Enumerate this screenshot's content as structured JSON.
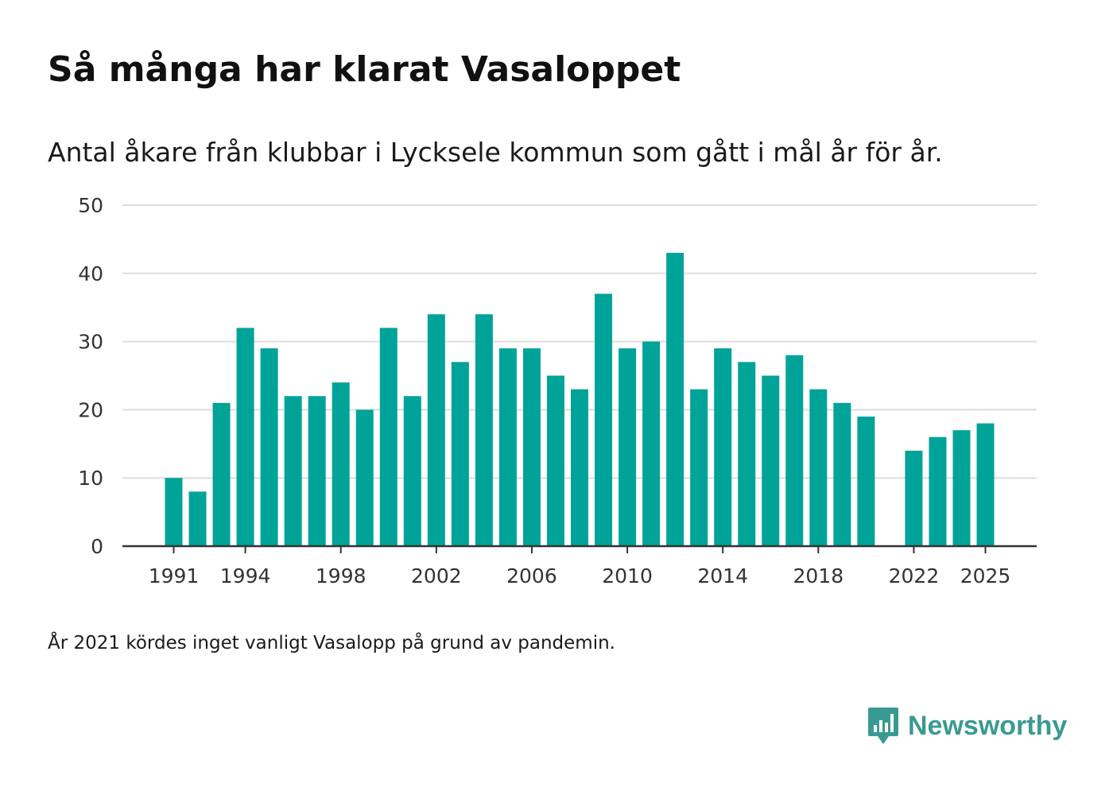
{
  "title": "Så många har klarat Vasaloppet",
  "subtitle": "Antal åkare från klubbar i Lycksele kommun som gått i mål år för år.",
  "note": "År 2021 kördes inget vanligt Vasalopp på grund av pandemin.",
  "brand": {
    "name": "Newsworthy",
    "logo_icon": "bar-chart-speech-bubble-icon",
    "color": "#3a9a92"
  },
  "colors": {
    "bar": "#00a398",
    "grid": "#dddddd",
    "axis": "#333333",
    "tick_text": "#333333"
  },
  "chart_data": {
    "type": "bar",
    "title": "Så många har klarat Vasaloppet",
    "xlabel": "",
    "ylabel": "",
    "ylim": [
      0,
      50
    ],
    "yticks": [
      0,
      10,
      20,
      30,
      40,
      50
    ],
    "xticks": [
      1991,
      1994,
      1998,
      2002,
      2006,
      2010,
      2014,
      2018,
      2022,
      2025
    ],
    "grid": true,
    "legend": "none",
    "categories": [
      1991,
      1992,
      1993,
      1994,
      1995,
      1996,
      1997,
      1998,
      1999,
      2000,
      2001,
      2002,
      2003,
      2004,
      2005,
      2006,
      2007,
      2008,
      2009,
      2010,
      2011,
      2012,
      2013,
      2014,
      2015,
      2016,
      2017,
      2018,
      2019,
      2020,
      2021,
      2022,
      2023,
      2024,
      2025
    ],
    "values": [
      10,
      8,
      21,
      32,
      29,
      22,
      22,
      24,
      20,
      32,
      22,
      34,
      27,
      34,
      29,
      29,
      25,
      23,
      37,
      29,
      30,
      43,
      23,
      29,
      27,
      25,
      28,
      23,
      21,
      19,
      null,
      14,
      16,
      17,
      18
    ]
  }
}
